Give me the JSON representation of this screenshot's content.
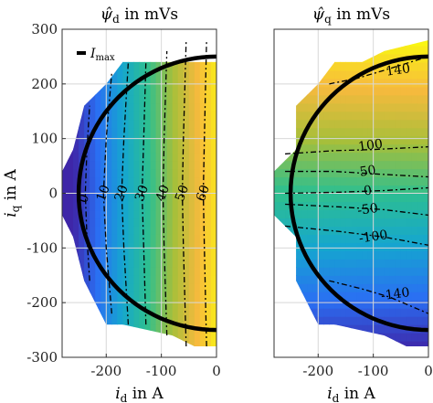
{
  "chart_data": [
    {
      "type": "heatmap",
      "panel": "left",
      "title_symbol": "ψ̂",
      "title_sub": "d",
      "title_unit": " in mVs",
      "xlabel_symbol": "i",
      "xlabel_sub": "d",
      "xlabel_unit": " in A",
      "ylabel_symbol": "i",
      "ylabel_sub": "q",
      "ylabel_unit": " in A",
      "xlim": [
        -280,
        0
      ],
      "ylim": [
        -300,
        300
      ],
      "xticks": [
        "-200",
        "-100",
        "0"
      ],
      "xtick_values": [
        -200,
        -100,
        0
      ],
      "yticks": [
        "300",
        "200",
        "100",
        "0",
        "-100",
        "-200",
        "-300"
      ],
      "ytick_values": [
        300,
        200,
        100,
        0,
        -100,
        -200,
        -300
      ],
      "grid": true,
      "colormap": [
        "#3e26a8",
        "#2a6ff3",
        "#15a6cf",
        "#2ebf8f",
        "#a7bf3a",
        "#f7ba3d",
        "#f9fb0e"
      ],
      "value_range": [
        -10,
        70
      ],
      "valid_region": [
        [
          -280,
          40
        ],
        [
          -260,
          80
        ],
        [
          -240,
          160
        ],
        [
          -200,
          200
        ],
        [
          -170,
          240
        ],
        [
          -120,
          240
        ],
        [
          0,
          240
        ],
        [
          0,
          -280
        ],
        [
          -40,
          -280
        ],
        [
          -80,
          -260
        ],
        [
          -170,
          -240
        ],
        [
          -200,
          -240
        ],
        [
          -240,
          -160
        ],
        [
          -260,
          -80
        ],
        [
          -280,
          -40
        ]
      ],
      "contour_labels": [
        "0",
        "10",
        "20",
        "30",
        "40",
        "50",
        "60"
      ],
      "contours": [
        {
          "level": 0,
          "points": [
            [
              -230,
              -160
            ],
            [
              -235,
              -80
            ],
            [
              -238,
              0
            ],
            [
              -235,
              80
            ],
            [
              -230,
              160
            ]
          ]
        },
        {
          "level": 10,
          "points": [
            [
              -190,
              -220
            ],
            [
              -200,
              -100
            ],
            [
              -205,
              0
            ],
            [
              -200,
              100
            ],
            [
              -190,
              220
            ]
          ]
        },
        {
          "level": 20,
          "points": [
            [
              -160,
              -240
            ],
            [
              -168,
              -100
            ],
            [
              -172,
              0
            ],
            [
              -168,
              100
            ],
            [
              -160,
              240
            ]
          ]
        },
        {
          "level": 30,
          "points": [
            [
              -128,
              -240
            ],
            [
              -132,
              -100
            ],
            [
              -135,
              0
            ],
            [
              -132,
              100
            ],
            [
              -128,
              240
            ]
          ]
        },
        {
          "level": 40,
          "points": [
            [
              -90,
              -260
            ],
            [
              -95,
              -100
            ],
            [
              -97,
              0
            ],
            [
              -95,
              100
            ],
            [
              -90,
              260
            ]
          ]
        },
        {
          "level": 50,
          "points": [
            [
              -55,
              -280
            ],
            [
              -60,
              -100
            ],
            [
              -62,
              0
            ],
            [
              -60,
              100
            ],
            [
              -55,
              280
            ]
          ]
        },
        {
          "level": 60,
          "points": [
            [
              -18,
              -280
            ],
            [
              -22,
              -100
            ],
            [
              -24,
              0
            ],
            [
              -22,
              100
            ],
            [
              -18,
              280
            ]
          ]
        }
      ],
      "circle_radius": 250,
      "legend_label_symbol": "I",
      "legend_label_sub": "max",
      "legend_position": "top-left"
    },
    {
      "type": "heatmap",
      "panel": "right",
      "title_symbol": "ψ̂",
      "title_sub": "q",
      "title_unit": " in mVs",
      "xlabel_symbol": "i",
      "xlabel_sub": "d",
      "xlabel_unit": " in A",
      "xlim": [
        -280,
        0
      ],
      "ylim": [
        -300,
        300
      ],
      "xticks": [
        "-200",
        "-100",
        "0"
      ],
      "xtick_values": [
        -200,
        -100,
        0
      ],
      "grid": true,
      "colormap": [
        "#3e26a8",
        "#2a6ff3",
        "#15a6cf",
        "#2ebf8f",
        "#a7bf3a",
        "#f7ba3d",
        "#f9fb0e"
      ],
      "value_range": [
        -160,
        160
      ],
      "valid_region": [
        [
          -280,
          40
        ],
        [
          -240,
          80
        ],
        [
          -240,
          160
        ],
        [
          -200,
          200
        ],
        [
          -170,
          240
        ],
        [
          -120,
          240
        ],
        [
          -80,
          260
        ],
        [
          0,
          280
        ],
        [
          0,
          -280
        ],
        [
          -40,
          -280
        ],
        [
          -80,
          -260
        ],
        [
          -170,
          -240
        ],
        [
          -200,
          -240
        ],
        [
          -240,
          -160
        ],
        [
          -240,
          -80
        ],
        [
          -280,
          -40
        ]
      ],
      "contour_labels": [
        "140",
        "100",
        "50",
        "0",
        "-50",
        "-100",
        "-140"
      ],
      "contours": [
        {
          "level": 140,
          "points": [
            [
              -180,
              200
            ],
            [
              -130,
              210
            ],
            [
              -80,
              225
            ],
            [
              0,
              250
            ]
          ]
        },
        {
          "level": 100,
          "points": [
            [
              -260,
              72
            ],
            [
              -170,
              78
            ],
            [
              -100,
              80
            ],
            [
              0,
              85
            ]
          ]
        },
        {
          "level": 50,
          "points": [
            [
              -260,
              40
            ],
            [
              -170,
              40
            ],
            [
              -90,
              35
            ],
            [
              0,
              30
            ]
          ]
        },
        {
          "level": 0,
          "points": [
            [
              -260,
              0
            ],
            [
              -160,
              2
            ],
            [
              -80,
              5
            ],
            [
              0,
              10
            ]
          ]
        },
        {
          "level": -50,
          "points": [
            [
              -260,
              -20
            ],
            [
              -160,
              -25
            ],
            [
              -80,
              -30
            ],
            [
              0,
              -40
            ]
          ]
        },
        {
          "level": -100,
          "points": [
            [
              -260,
              -60
            ],
            [
              -160,
              -70
            ],
            [
              -80,
              -80
            ],
            [
              0,
              -95
            ]
          ]
        },
        {
          "level": -140,
          "points": [
            [
              -180,
              -160
            ],
            [
              -120,
              -175
            ],
            [
              -70,
              -190
            ],
            [
              0,
              -220
            ]
          ]
        }
      ],
      "circle_radius": 250
    }
  ]
}
